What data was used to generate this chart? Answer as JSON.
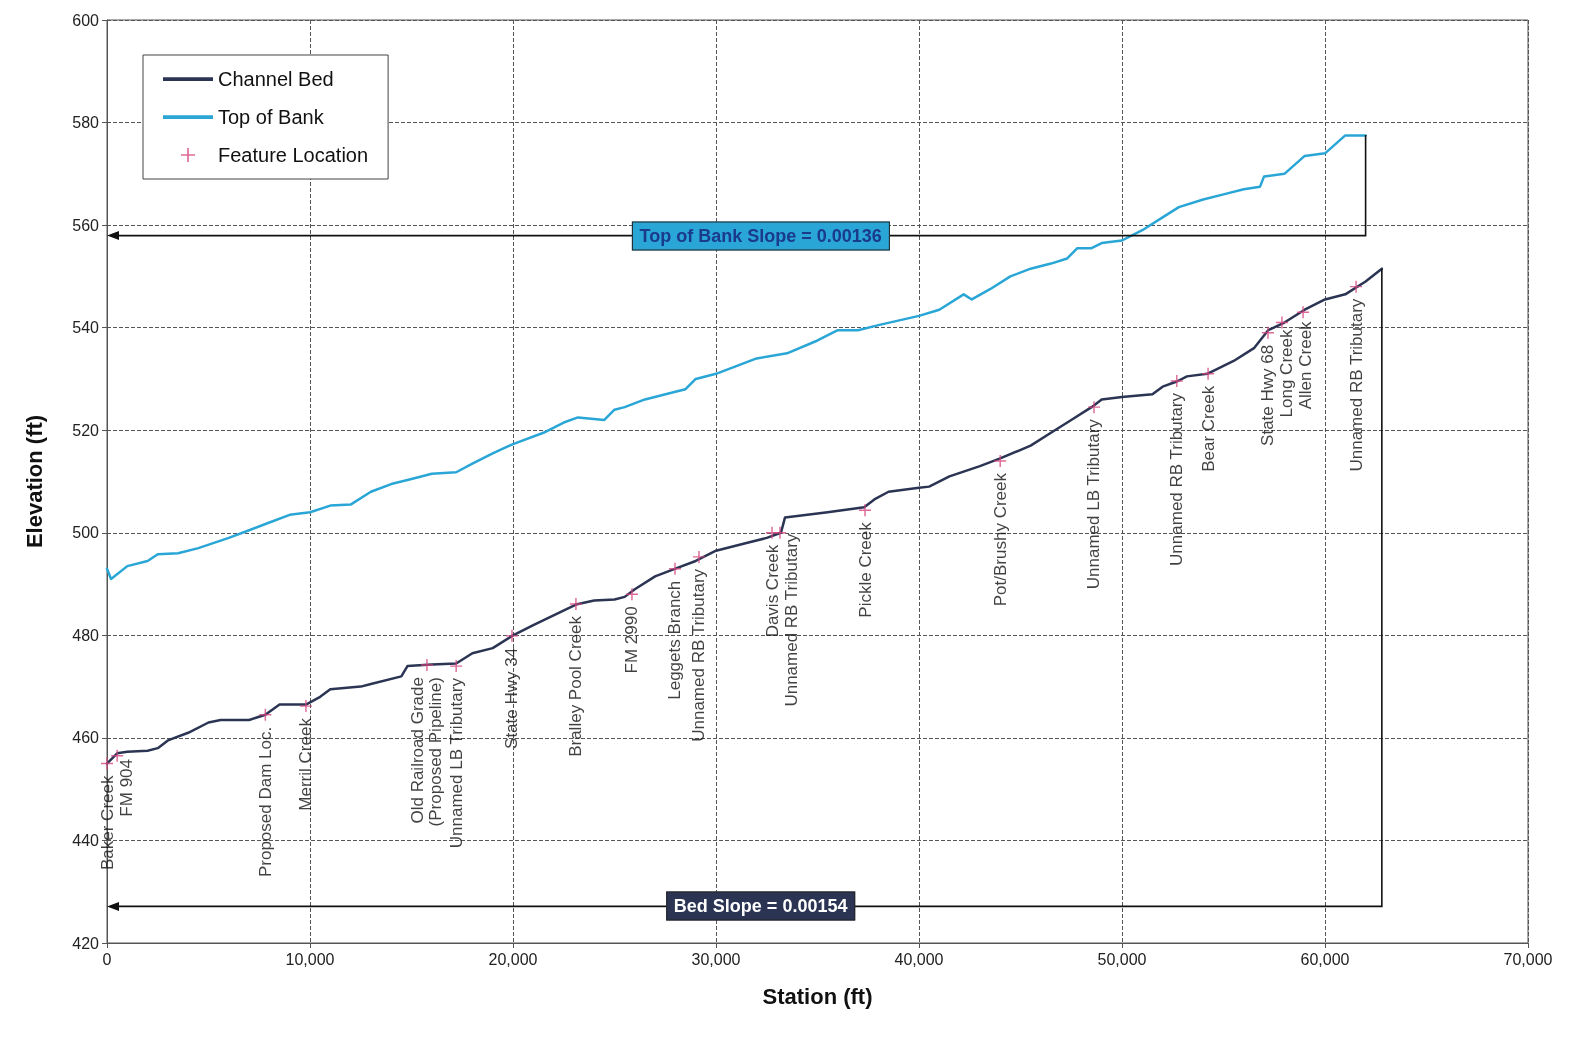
{
  "chart_data": {
    "type": "line",
    "xlabel": "Station (ft)",
    "ylabel": "Elevation (ft)",
    "xlim": [
      0,
      70000
    ],
    "xticks": [
      0,
      {
        "value": 10000,
        "label": "10,000"
      },
      {
        "value": 20000,
        "label": "20,000"
      },
      {
        "value": 30000,
        "label": "30,000"
      },
      {
        "value": 40000,
        "label": "40,000"
      },
      {
        "value": 50000,
        "label": "50,000"
      },
      {
        "value": 60000,
        "label": "60,000"
      },
      {
        "value": 70000,
        "label": "70,000"
      }
    ],
    "ylim": [
      420,
      600
    ],
    "yticks": [
      420,
      440,
      460,
      480,
      500,
      520,
      540,
      560,
      580,
      600
    ],
    "grid": true,
    "legend": "top left",
    "line_style": "solid",
    "series": [
      {
        "name": "Channel Bed",
        "type": "line",
        "color": "#2b3553",
        "x": [
          0,
          500,
          1000,
          2000,
          2500,
          3000,
          4000,
          5000,
          5600,
          7000,
          7800,
          8500,
          9800,
          10500,
          11000,
          12500,
          13000,
          14500,
          14800,
          16000,
          17200,
          18000,
          19000,
          20000,
          21000,
          23100,
          24000,
          25000,
          25500,
          26000,
          27000,
          28000,
          29000,
          30000,
          31500,
          32500,
          33200,
          33400,
          35500,
          37300,
          37800,
          38500,
          40000,
          40500,
          41500,
          43000,
          44000,
          45500,
          46500,
          47500,
          48500,
          49000,
          50000,
          51500,
          52000,
          52700,
          53200,
          54200,
          55500,
          56500,
          57200,
          58000,
          59000,
          60000,
          61000,
          62000,
          62800
        ],
        "values": [
          455,
          457,
          457.3,
          457.5,
          458,
          459.5,
          461,
          463,
          463.5,
          463.5,
          464.5,
          466.5,
          466.5,
          468,
          469.5,
          470,
          470.5,
          472,
          474,
          474.3,
          474.5,
          476.5,
          477.5,
          480,
          482,
          486,
          486.8,
          487,
          487.5,
          489,
          491.5,
          493,
          494.5,
          496.5,
          498,
          499,
          500,
          503,
          504,
          505,
          506.5,
          508,
          508.8,
          509,
          511,
          513,
          514.5,
          517,
          519.5,
          522,
          524.5,
          526,
          526.5,
          527,
          528.5,
          529.5,
          530.5,
          531,
          533.5,
          536,
          539.5,
          541,
          543.5,
          545.5,
          546.5,
          549,
          551.5
        ]
      },
      {
        "name": "Top of Bank",
        "type": "line",
        "color": "#2aa6d6",
        "x": [
          0,
          200,
          1000,
          2000,
          2500,
          3500,
          4500,
          6000,
          7000,
          8000,
          9000,
          10000,
          11000,
          12000,
          13000,
          14000,
          15000,
          16000,
          17200,
          18000,
          19000,
          20000,
          21500,
          22500,
          23200,
          24500,
          25000,
          25500,
          26500,
          28000,
          28500,
          29000,
          30000,
          31000,
          32000,
          33500,
          35000,
          36000,
          37000,
          38000,
          40000,
          41000,
          42200,
          42600,
          43500,
          44500,
          45500,
          46500,
          47300,
          47800,
          48500,
          49000,
          50000,
          51000,
          52000,
          52800,
          54000,
          55000,
          56000,
          56800,
          57000,
          58000,
          59000,
          60000,
          61000,
          61600,
          62000
        ],
        "values": [
          493,
          491,
          493.5,
          494.5,
          495.8,
          496,
          497,
          499,
          500.5,
          502,
          503.5,
          504,
          505.3,
          505.5,
          508,
          509.5,
          510.5,
          511.5,
          511.8,
          513.5,
          515.5,
          517.3,
          519.5,
          521.5,
          522.5,
          522,
          524,
          524.5,
          526,
          527.5,
          528,
          530,
          531,
          532.5,
          534,
          535,
          537.5,
          539.5,
          539.5,
          540.5,
          542.3,
          543.5,
          546.5,
          545.5,
          547.5,
          550,
          551.5,
          552.5,
          553.5,
          555.5,
          555.5,
          556.5,
          557,
          559,
          561.5,
          563.5,
          565,
          566,
          567,
          567.5,
          569.5,
          570,
          573.5,
          574,
          577.5,
          577.5,
          577.5
        ]
      },
      {
        "name": "Feature Location",
        "type": "scatter",
        "marker": "cross",
        "color": "#d4457f",
        "x": [
          0,
          500,
          7800,
          9800,
          15760,
          17200,
          19950,
          23100,
          25860,
          27980,
          29160,
          32760,
          33150,
          37340,
          44000,
          48620,
          52700,
          54240,
          57190,
          57880,
          58920,
          61530
        ],
        "values": [
          455,
          456.5,
          464.5,
          466.2,
          474.2,
          474,
          479.9,
          486.1,
          488,
          493,
          495.3,
          500,
          500,
          504.4,
          514,
          524.5,
          529.6,
          531,
          539,
          541,
          543,
          548
        ]
      }
    ],
    "annotations": [
      "Top of Bank Slope = 0.00136",
      "Bed Slope = 0.00154",
      {
        "text": "Baker Creek",
        "x": 0,
        "y": 455
      },
      {
        "text": "FM 904",
        "x": 500,
        "y": 456.5
      },
      {
        "text": "Proposed Dam Loc.",
        "x": 7800,
        "y": 464.5
      },
      {
        "text": "Merril Creek",
        "x": 9800,
        "y": 466.2
      },
      {
        "text": "Old Railroad Grade\n(Proposed Pipeline)",
        "x": 15760,
        "y": 474.2
      },
      {
        "text": "Unnamed LB Tributary",
        "x": 17200,
        "y": 474
      },
      {
        "text": "State Hwy 34",
        "x": 19950,
        "y": 479.9
      },
      {
        "text": "Bralley Pool Creek",
        "x": 23100,
        "y": 486.1
      },
      {
        "text": "FM 2990",
        "x": 25860,
        "y": 488
      },
      {
        "text": "Leggets Branch",
        "x": 27980,
        "y": 493
      },
      {
        "text": "Unnamed RB Tributary",
        "x": 29160,
        "y": 495.3
      },
      {
        "text": "Davis Creek",
        "x": 32760,
        "y": 500
      },
      {
        "text": "Unnamed RB Tributary",
        "x": 33150,
        "y": 500
      },
      {
        "text": "Pickle Creek",
        "x": 37340,
        "y": 504.4
      },
      {
        "text": "Pot/Brushy Creek",
        "x": 44000,
        "y": 514
      },
      {
        "text": "Unnamed LB Tributary",
        "x": 48620,
        "y": 524.5
      },
      {
        "text": "Unnamed RB Tributary",
        "x": 52700,
        "y": 529.6
      },
      {
        "text": "Bear Creek",
        "x": 54240,
        "y": 531
      },
      {
        "text": "State Hwy 68",
        "x": 57190,
        "y": 539
      },
      {
        "text": "Long Creek",
        "x": 57880,
        "y": 541
      },
      {
        "text": "Allen Creek",
        "x": 58920,
        "y": 543
      },
      {
        "text": "Unnamed RB Tributary",
        "x": 61530,
        "y": 548
      }
    ]
  }
}
